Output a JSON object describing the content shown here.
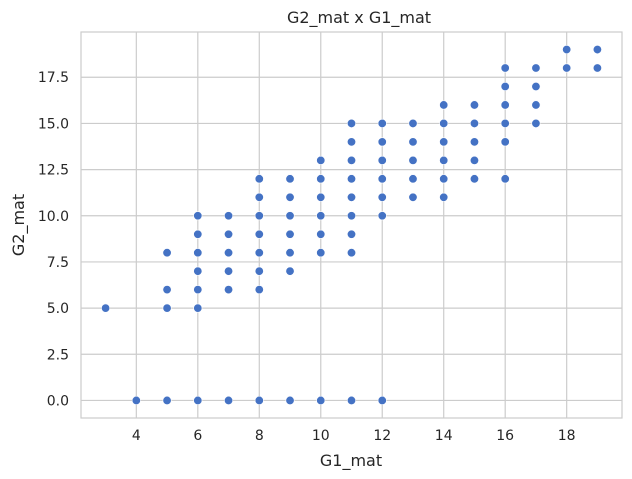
{
  "chart_data": {
    "type": "scatter",
    "title": "G2_mat x G1_mat",
    "xlabel": "G1_mat",
    "ylabel": "G2_mat",
    "xlim": [
      2.2,
      19.8
    ],
    "ylim": [
      -0.95,
      19.95
    ],
    "xticks": [
      4,
      6,
      8,
      10,
      12,
      14,
      16,
      18
    ],
    "xtick_labels": [
      "4",
      "6",
      "8",
      "10",
      "12",
      "14",
      "16",
      "18"
    ],
    "yticks": [
      0,
      2.5,
      5,
      7.5,
      10,
      12.5,
      15,
      17.5
    ],
    "ytick_labels": [
      "0.0",
      "2.5",
      "5.0",
      "7.5",
      "10.0",
      "12.5",
      "15.0",
      "17.5"
    ],
    "grid": true,
    "marker_color": "#4472c4",
    "points": [
      {
        "x": 3,
        "y": 5
      },
      {
        "x": 4,
        "y": 0
      },
      {
        "x": 5,
        "y": 0
      },
      {
        "x": 5,
        "y": 5
      },
      {
        "x": 5,
        "y": 6
      },
      {
        "x": 5,
        "y": 8
      },
      {
        "x": 6,
        "y": 0
      },
      {
        "x": 6,
        "y": 5
      },
      {
        "x": 6,
        "y": 6
      },
      {
        "x": 6,
        "y": 7
      },
      {
        "x": 6,
        "y": 8
      },
      {
        "x": 6,
        "y": 9
      },
      {
        "x": 6,
        "y": 10
      },
      {
        "x": 7,
        "y": 0
      },
      {
        "x": 7,
        "y": 6
      },
      {
        "x": 7,
        "y": 7
      },
      {
        "x": 7,
        "y": 8
      },
      {
        "x": 7,
        "y": 9
      },
      {
        "x": 7,
        "y": 10
      },
      {
        "x": 8,
        "y": 0
      },
      {
        "x": 8,
        "y": 6
      },
      {
        "x": 8,
        "y": 7
      },
      {
        "x": 8,
        "y": 8
      },
      {
        "x": 8,
        "y": 9
      },
      {
        "x": 8,
        "y": 10
      },
      {
        "x": 8,
        "y": 11
      },
      {
        "x": 8,
        "y": 12
      },
      {
        "x": 9,
        "y": 0
      },
      {
        "x": 9,
        "y": 7
      },
      {
        "x": 9,
        "y": 8
      },
      {
        "x": 9,
        "y": 9
      },
      {
        "x": 9,
        "y": 10
      },
      {
        "x": 9,
        "y": 11
      },
      {
        "x": 9,
        "y": 12
      },
      {
        "x": 10,
        "y": 0
      },
      {
        "x": 10,
        "y": 8
      },
      {
        "x": 10,
        "y": 9
      },
      {
        "x": 10,
        "y": 10
      },
      {
        "x": 10,
        "y": 11
      },
      {
        "x": 10,
        "y": 12
      },
      {
        "x": 10,
        "y": 13
      },
      {
        "x": 11,
        "y": 0
      },
      {
        "x": 11,
        "y": 8
      },
      {
        "x": 11,
        "y": 9
      },
      {
        "x": 11,
        "y": 10
      },
      {
        "x": 11,
        "y": 11
      },
      {
        "x": 11,
        "y": 12
      },
      {
        "x": 11,
        "y": 13
      },
      {
        "x": 11,
        "y": 14
      },
      {
        "x": 11,
        "y": 15
      },
      {
        "x": 12,
        "y": 0
      },
      {
        "x": 12,
        "y": 10
      },
      {
        "x": 12,
        "y": 11
      },
      {
        "x": 12,
        "y": 12
      },
      {
        "x": 12,
        "y": 13
      },
      {
        "x": 12,
        "y": 14
      },
      {
        "x": 12,
        "y": 15
      },
      {
        "x": 13,
        "y": 11
      },
      {
        "x": 13,
        "y": 12
      },
      {
        "x": 13,
        "y": 13
      },
      {
        "x": 13,
        "y": 14
      },
      {
        "x": 13,
        "y": 15
      },
      {
        "x": 14,
        "y": 11
      },
      {
        "x": 14,
        "y": 12
      },
      {
        "x": 14,
        "y": 13
      },
      {
        "x": 14,
        "y": 14
      },
      {
        "x": 14,
        "y": 15
      },
      {
        "x": 14,
        "y": 16
      },
      {
        "x": 15,
        "y": 12
      },
      {
        "x": 15,
        "y": 13
      },
      {
        "x": 15,
        "y": 14
      },
      {
        "x": 15,
        "y": 15
      },
      {
        "x": 15,
        "y": 16
      },
      {
        "x": 16,
        "y": 12
      },
      {
        "x": 16,
        "y": 14
      },
      {
        "x": 16,
        "y": 15
      },
      {
        "x": 16,
        "y": 16
      },
      {
        "x": 16,
        "y": 17
      },
      {
        "x": 16,
        "y": 18
      },
      {
        "x": 17,
        "y": 15
      },
      {
        "x": 17,
        "y": 16
      },
      {
        "x": 17,
        "y": 17
      },
      {
        "x": 17,
        "y": 18
      },
      {
        "x": 18,
        "y": 18
      },
      {
        "x": 18,
        "y": 19
      },
      {
        "x": 19,
        "y": 18
      },
      {
        "x": 19,
        "y": 19
      }
    ]
  }
}
